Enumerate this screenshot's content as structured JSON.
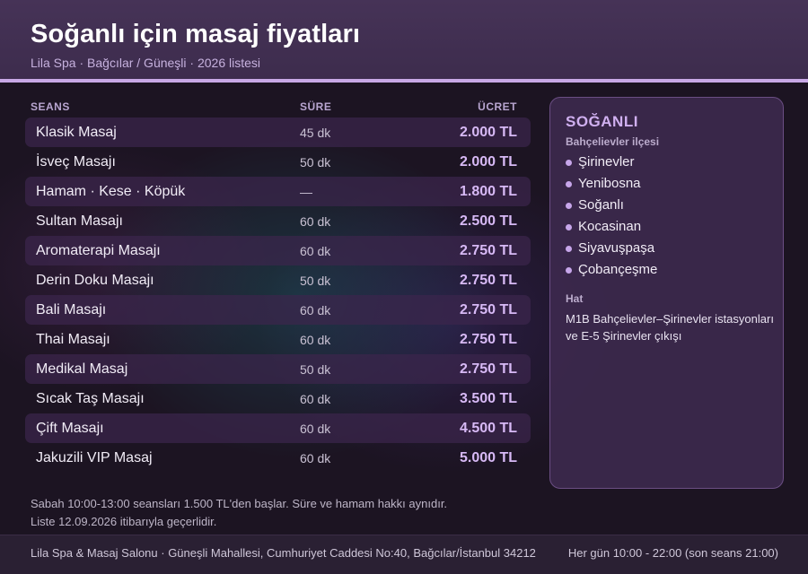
{
  "header": {
    "title": "Soğanlı için masaj fiyatları",
    "subtitle": "Lila Spa · Bağcılar / Güneşli · 2026 listesi"
  },
  "table": {
    "col_session": "SEANS",
    "col_duration": "SÜRE",
    "col_price": "ÜCRET",
    "rows": [
      {
        "name": "Klasik Masaj",
        "duration": "45 dk",
        "price": "2.000 TL"
      },
      {
        "name": "İsveç Masajı",
        "duration": "50 dk",
        "price": "2.000 TL"
      },
      {
        "name": "Hamam · Kese · Köpük",
        "duration": "—",
        "price": "1.800 TL"
      },
      {
        "name": "Sultan Masajı",
        "duration": "60 dk",
        "price": "2.500 TL"
      },
      {
        "name": "Aromaterapi Masajı",
        "duration": "60 dk",
        "price": "2.750 TL"
      },
      {
        "name": "Derin Doku Masajı",
        "duration": "50 dk",
        "price": "2.750 TL"
      },
      {
        "name": "Bali Masajı",
        "duration": "60 dk",
        "price": "2.750 TL"
      },
      {
        "name": "Thai Masajı",
        "duration": "60 dk",
        "price": "2.750 TL"
      },
      {
        "name": "Medikal Masaj",
        "duration": "50 dk",
        "price": "2.750 TL"
      },
      {
        "name": "Sıcak Taş Masajı",
        "duration": "60 dk",
        "price": "3.500 TL"
      },
      {
        "name": "Çift Masajı",
        "duration": "60 dk",
        "price": "4.500 TL"
      },
      {
        "name": "Jakuzili VIP Masaj",
        "duration": "60 dk",
        "price": "5.000 TL"
      }
    ]
  },
  "panel": {
    "title": "SOĞANLI",
    "subtitle": "Bahçelievler ilçesi",
    "neighborhoods": [
      "Şirinevler",
      "Yenibosna",
      "Soğanlı",
      "Kocasinan",
      "Siyavuşpaşa",
      "Çobançeşme"
    ],
    "line_heading": "Hat",
    "line_text": "M1B Bahçelievler–Şirinevler istasyonları ve E-5 Şirinevler çıkışı"
  },
  "note": {
    "line1": "Sabah 10:00-13:00 seansları 1.500 TL'den başlar. Süre ve hamam hakkı aynıdır.",
    "line2": "Liste 12.09.2026 itibarıyla geçerlidir."
  },
  "footer": {
    "address": "Lila Spa & Masaj Salonu · Güneşli Mahallesi, Cumhuriyet Caddesi No:40, Bağcılar/İstanbul 34212",
    "hours": "Her gün 10:00 - 22:00 (son seans 21:00)"
  },
  "colors": {
    "accent": "#c8a8e6",
    "price": "#d7b9f5",
    "header_bg": "#463357",
    "panel_bg": "#3e2a50"
  }
}
